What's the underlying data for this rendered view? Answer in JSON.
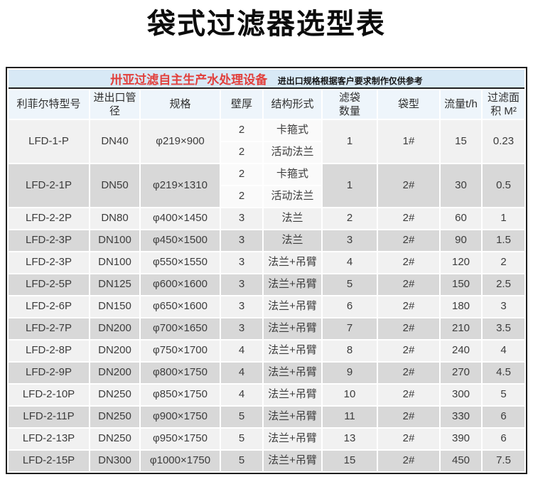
{
  "page": {
    "title": "袋式过滤器选型表"
  },
  "table": {
    "banner": {
      "brand": "卅亚过滤自主生产水处理设备",
      "note": "进出口规格根据客户要求制作仅供参考"
    },
    "columns": [
      "利菲尔特型号",
      "进出口管\n径",
      "规格",
      "壁厚",
      "结构形式",
      "滤袋\n数量",
      "袋型",
      "流量t/h",
      "过滤面\n积 M²"
    ],
    "rows": [
      {
        "model": "LFD-1-P",
        "port": "DN40",
        "spec": "φ219×900",
        "sub": [
          {
            "wall": "2",
            "structure": "卡箍式"
          },
          {
            "wall": "2",
            "structure": "活动法兰"
          }
        ],
        "bags": "1",
        "bag_type": "1#",
        "flow": "15",
        "area": "0.23"
      },
      {
        "model": "LFD-2-1P",
        "port": "DN50",
        "spec": "φ219×1310",
        "sub": [
          {
            "wall": "2",
            "structure": "卡箍式"
          },
          {
            "wall": "2",
            "structure": "活动法兰"
          }
        ],
        "bags": "1",
        "bag_type": "2#",
        "flow": "30",
        "area": "0.5"
      },
      {
        "model": "LFD-2-2P",
        "port": "DN80",
        "spec": "φ400×1450",
        "wall": "3",
        "structure": "法兰",
        "bags": "2",
        "bag_type": "2#",
        "flow": "60",
        "area": "1"
      },
      {
        "model": "LFD-2-3P",
        "port": "DN100",
        "spec": "φ450×1500",
        "wall": "3",
        "structure": "法兰",
        "bags": "3",
        "bag_type": "2#",
        "flow": "90",
        "area": "1.5"
      },
      {
        "model": "LFD-2-3P",
        "port": "DN100",
        "spec": "φ550×1550",
        "wall": "3",
        "structure": "法兰+吊臂",
        "bags": "4",
        "bag_type": "2#",
        "flow": "120",
        "area": "2"
      },
      {
        "model": "LFD-2-5P",
        "port": "DN125",
        "spec": "φ600×1600",
        "wall": "3",
        "structure": "法兰+吊臂",
        "bags": "5",
        "bag_type": "2#",
        "flow": "150",
        "area": "2.5"
      },
      {
        "model": "LFD-2-6P",
        "port": "DN150",
        "spec": "φ650×1600",
        "wall": "3",
        "structure": "法兰+吊臂",
        "bags": "6",
        "bag_type": "2#",
        "flow": "180",
        "area": "3"
      },
      {
        "model": "LFD-2-7P",
        "port": "DN200",
        "spec": "φ700×1650",
        "wall": "3",
        "structure": "法兰+吊臂",
        "bags": "7",
        "bag_type": "2#",
        "flow": "210",
        "area": "3.5"
      },
      {
        "model": "LFD-2-8P",
        "port": "DN200",
        "spec": "φ750×1700",
        "wall": "4",
        "structure": "法兰+吊臂",
        "bags": "8",
        "bag_type": "2#",
        "flow": "240",
        "area": "4"
      },
      {
        "model": "LFD-2-9P",
        "port": "DN200",
        "spec": "φ800×1750",
        "wall": "4",
        "structure": "法兰+吊臂",
        "bags": "9",
        "bag_type": "2#",
        "flow": "270",
        "area": "4.5"
      },
      {
        "model": "LFD-2-10P",
        "port": "DN250",
        "spec": "φ850×1750",
        "wall": "4",
        "structure": "法兰+吊臂",
        "bags": "10",
        "bag_type": "2#",
        "flow": "300",
        "area": "5"
      },
      {
        "model": "LFD-2-11P",
        "port": "DN250",
        "spec": "φ900×1750",
        "wall": "5",
        "structure": "法兰+吊臂",
        "bags": "11",
        "bag_type": "2#",
        "flow": "330",
        "area": "6"
      },
      {
        "model": "LFD-2-13P",
        "port": "DN250",
        "spec": "φ950×1750",
        "wall": "5",
        "structure": "法兰+吊臂",
        "bags": "13",
        "bag_type": "2#",
        "flow": "390",
        "area": "6"
      },
      {
        "model": "LFD-2-15P",
        "port": "DN300",
        "spec": "φ1000×1750",
        "wall": "5",
        "structure": "法兰+吊臂",
        "bags": "15",
        "bag_type": "2#",
        "flow": "450",
        "area": "7.5"
      }
    ]
  },
  "colors": {
    "banner_bg": "#d8e9f6",
    "brand_red": "#e2403c",
    "header_bg": "#eef5fb",
    "row_light": "#f1f1f1",
    "row_gray": "#d8d8d8",
    "row_sub": "#fafafa",
    "border_dark": "#1f1f1f"
  }
}
